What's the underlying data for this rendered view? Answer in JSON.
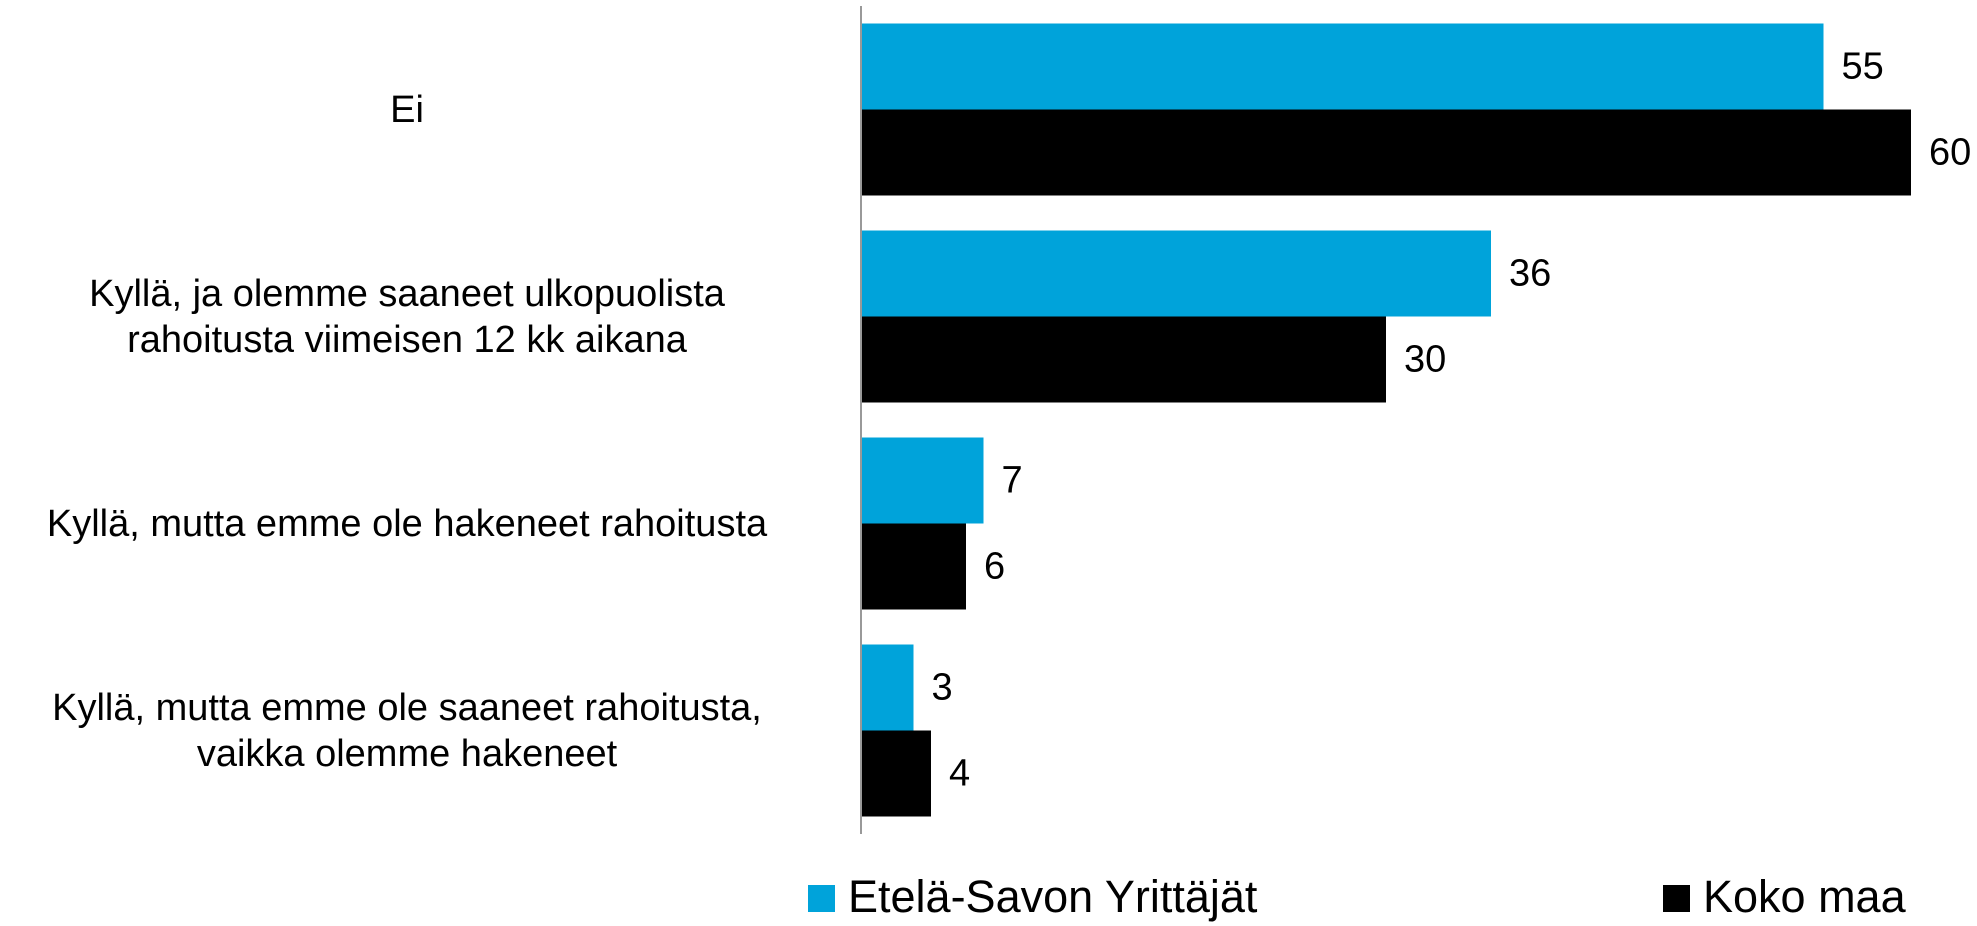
{
  "chart_data": {
    "type": "bar",
    "orientation": "horizontal",
    "categories": [
      "Ei",
      "Kyllä, ja olemme saaneet ulkopuolista\nrahoitusta viimeisen 12 kk aikana",
      "Kyllä, mutta emme ole hakeneet rahoitusta",
      "Kyllä, mutta emme ole saaneet rahoitusta,\nvaikka olemme hakeneet"
    ],
    "series": [
      {
        "name": "Etelä-Savon Yrittäjät",
        "color": "#00a3da",
        "values": [
          55,
          36,
          7,
          3
        ]
      },
      {
        "name": "Koko maa",
        "color": "#000000",
        "values": [
          60,
          30,
          6,
          4
        ]
      }
    ],
    "xlim": [
      0,
      60
    ],
    "legend": "bottom"
  }
}
